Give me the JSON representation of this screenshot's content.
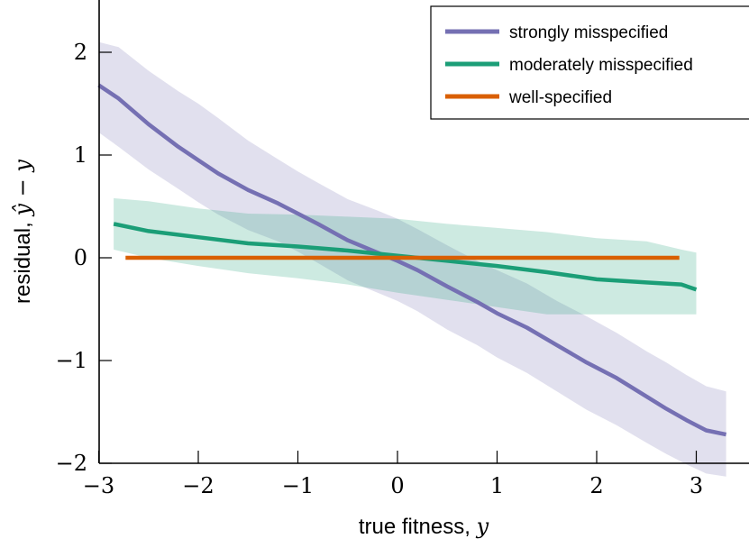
{
  "chart_data": {
    "type": "line",
    "xlabel": "true fitness, ",
    "xlabel_math": "y",
    "ylabel": "residual, ",
    "ylabel_math": "ŷ − y",
    "xlim": [
      -3,
      3.35
    ],
    "ylim": [
      -2,
      2.5
    ],
    "xticks": [
      -3,
      -2,
      -1,
      0,
      1,
      2,
      3
    ],
    "xtick_labels": [
      "−3",
      "−2",
      "−1",
      "0",
      "1",
      "2",
      "3"
    ],
    "yticks": [
      -2,
      -1,
      0,
      1,
      2
    ],
    "ytick_labels": [
      "−2",
      "−1",
      "0",
      "1",
      "2"
    ],
    "grid": false,
    "legend_position": "top-right",
    "series": [
      {
        "name": "strongly misspecified",
        "color": "#7570b3",
        "band_color": "#7570b3",
        "x": [
          -3.0,
          -2.8,
          -2.5,
          -2.2,
          -2.0,
          -1.8,
          -1.5,
          -1.2,
          -1.0,
          -0.8,
          -0.5,
          -0.2,
          0.0,
          0.2,
          0.5,
          0.8,
          1.0,
          1.3,
          1.6,
          1.9,
          2.2,
          2.5,
          2.7,
          2.9,
          3.1,
          3.3
        ],
        "y": [
          1.68,
          1.55,
          1.3,
          1.08,
          0.95,
          0.82,
          0.66,
          0.53,
          0.43,
          0.33,
          0.17,
          0.05,
          -0.03,
          -0.12,
          -0.28,
          -0.43,
          -0.54,
          -0.68,
          -0.85,
          -1.02,
          -1.17,
          -1.35,
          -1.47,
          -1.58,
          -1.68,
          -1.72
        ],
        "lower": [
          1.22,
          1.08,
          0.86,
          0.67,
          0.54,
          0.42,
          0.27,
          0.16,
          0.06,
          -0.05,
          -0.22,
          -0.34,
          -0.42,
          -0.52,
          -0.7,
          -0.85,
          -0.97,
          -1.12,
          -1.3,
          -1.48,
          -1.63,
          -1.8,
          -1.91,
          -2.01,
          -2.1,
          -2.13
        ],
        "upper": [
          2.1,
          2.05,
          1.82,
          1.62,
          1.5,
          1.36,
          1.14,
          0.96,
          0.84,
          0.73,
          0.57,
          0.46,
          0.38,
          0.28,
          0.12,
          -0.03,
          -0.12,
          -0.25,
          -0.42,
          -0.57,
          -0.73,
          -0.91,
          -1.02,
          -1.14,
          -1.25,
          -1.3
        ]
      },
      {
        "name": "moderately misspecified",
        "color": "#1b9e77",
        "band_color": "#1b9e77",
        "x": [
          -2.85,
          -2.5,
          -2.0,
          -1.5,
          -1.0,
          -0.5,
          0.0,
          0.5,
          1.0,
          1.5,
          2.0,
          2.5,
          2.85,
          3.0
        ],
        "y": [
          0.33,
          0.26,
          0.2,
          0.14,
          0.11,
          0.07,
          0.02,
          -0.03,
          -0.08,
          -0.14,
          -0.21,
          -0.24,
          -0.26,
          -0.31
        ],
        "lower": [
          0.08,
          0.0,
          -0.08,
          -0.15,
          -0.2,
          -0.26,
          -0.34,
          -0.41,
          -0.48,
          -0.55,
          -0.55,
          -0.55,
          -0.55,
          -0.55
        ],
        "upper": [
          0.58,
          0.55,
          0.48,
          0.43,
          0.42,
          0.4,
          0.38,
          0.33,
          0.29,
          0.25,
          0.19,
          0.16,
          0.08,
          0.05
        ]
      },
      {
        "name": "well-specified",
        "color": "#d95f02",
        "x": [
          -2.73,
          2.83
        ],
        "y": [
          0.0,
          0.0
        ]
      }
    ]
  }
}
